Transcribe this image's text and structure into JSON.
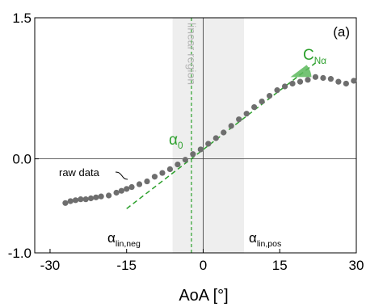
{
  "chart_data": {
    "type": "scatter",
    "x_label": "AoA [°]",
    "panel_label": "(a)",
    "region_label": "linear region",
    "point_label": "raw data",
    "alpha0_label": {
      "text": "α",
      "sub": "0"
    },
    "slope_label": {
      "text": "C",
      "sub": "Nα"
    },
    "lin_neg_label": {
      "text": "α",
      "sub": "lin,neg"
    },
    "lin_pos_label": {
      "text": "α",
      "sub": "lin,pos"
    },
    "xlim": [
      -33,
      30
    ],
    "ylim": [
      -1.0,
      1.5
    ],
    "xticks": [
      -30,
      -15,
      0,
      15,
      30
    ],
    "yticks": [
      {
        "value": -1.0,
        "label": "-1.0"
      },
      {
        "value": 0,
        "label": "0.0"
      },
      1.5
    ],
    "point_color": "#6e6e6e",
    "x": [
      -27,
      -26,
      -25,
      -24,
      -23,
      -22,
      -21,
      -20,
      -18.5,
      -17,
      -16,
      -15,
      -14,
      -12.5,
      -11,
      -9.5,
      -8,
      -6.5,
      -5,
      -3.5,
      -2,
      -0.5,
      1,
      2.5,
      4,
      5.5,
      7,
      8.5,
      10,
      11.5,
      13,
      14.5,
      16,
      17.5,
      19,
      20.5,
      22,
      23.5,
      25,
      26.5,
      28,
      29.5
    ],
    "values": [
      -0.47,
      -0.45,
      -0.44,
      -0.43,
      -0.43,
      -0.42,
      -0.41,
      -0.4,
      -0.39,
      -0.36,
      -0.34,
      -0.32,
      -0.3,
      -0.27,
      -0.24,
      -0.19,
      -0.15,
      -0.11,
      -0.06,
      -0.01,
      0.05,
      0.1,
      0.16,
      0.22,
      0.28,
      0.35,
      0.42,
      0.48,
      0.55,
      0.61,
      0.67,
      0.73,
      0.77,
      0.8,
      0.82,
      0.84,
      0.87,
      0.86,
      0.85,
      0.82,
      0.8,
      0.83
    ],
    "fit_line": {
      "color": "#2ca02c",
      "x": [
        -15,
        22
      ],
      "values": [
        -0.53,
        1.02
      ]
    },
    "linear_region": [
      -6,
      8
    ],
    "region_color": "#eeeeee",
    "alpha0": -2.3
  }
}
